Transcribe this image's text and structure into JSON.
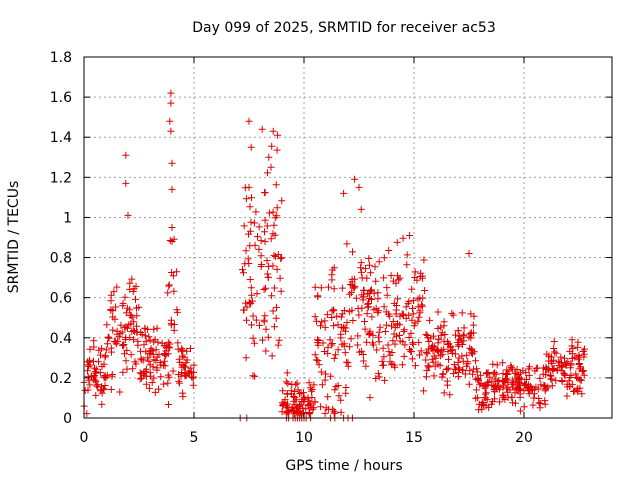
{
  "chart_data": {
    "type": "scatter",
    "title": "Day 099 of 2025, SRMTID for receiver ac53",
    "xlabel": "GPS time / hours",
    "ylabel": "SRMTID / TECUs",
    "xlim": [
      0,
      24
    ],
    "ylim": [
      0,
      1.8
    ],
    "xticks": [
      0,
      5,
      10,
      15,
      20
    ],
    "xtick_labels": [
      "0",
      "5",
      "10",
      "15",
      "20"
    ],
    "yticks": [
      0,
      0.2,
      0.4,
      0.6,
      0.8,
      1.0,
      1.2,
      1.4,
      1.6,
      1.8
    ],
    "ytick_labels": [
      "0",
      "0.2",
      "0.4",
      "0.6",
      "0.8",
      "1",
      "1.2",
      "1.4",
      "1.6",
      "1.8"
    ],
    "grid": true,
    "marker": "plus",
    "marker_color": "#e00000",
    "series": [
      {
        "name": "SRMTID",
        "segments": [
          {
            "x_start": 0.0,
            "x_end": 1.0,
            "baseline": 0.22,
            "spread": 0.1
          },
          {
            "x_start": 1.0,
            "x_end": 2.5,
            "baseline": 0.45,
            "spread": 0.15
          },
          {
            "x_start": 2.5,
            "x_end": 3.8,
            "baseline": 0.3,
            "spread": 0.1
          },
          {
            "x_start": 3.8,
            "x_end": 4.3,
            "baseline": 0.45,
            "spread": 0.35
          },
          {
            "x_start": 4.3,
            "x_end": 5.0,
            "baseline": 0.25,
            "spread": 0.08
          },
          {
            "x_start": 7.2,
            "x_end": 9.0,
            "baseline": 0.7,
            "spread": 0.3
          },
          {
            "x_start": 9.0,
            "x_end": 10.5,
            "baseline": 0.08,
            "spread": 0.08
          },
          {
            "x_start": 10.5,
            "x_end": 12.0,
            "baseline": 0.35,
            "spread": 0.25
          },
          {
            "x_start": 12.0,
            "x_end": 15.5,
            "baseline": 0.5,
            "spread": 0.2
          },
          {
            "x_start": 15.5,
            "x_end": 17.8,
            "baseline": 0.33,
            "spread": 0.1
          },
          {
            "x_start": 17.8,
            "x_end": 21.0,
            "baseline": 0.16,
            "spread": 0.07
          },
          {
            "x_start": 21.0,
            "x_end": 22.8,
            "baseline": 0.25,
            "spread": 0.08
          }
        ],
        "peaks": [
          {
            "x": 1.9,
            "y": 1.31
          },
          {
            "x": 1.9,
            "y": 1.17
          },
          {
            "x": 2.0,
            "y": 1.01
          },
          {
            "x": 3.95,
            "y": 1.62
          },
          {
            "x": 3.95,
            "y": 1.57
          },
          {
            "x": 3.9,
            "y": 1.48
          },
          {
            "x": 3.95,
            "y": 1.43
          },
          {
            "x": 4.0,
            "y": 1.27
          },
          {
            "x": 4.0,
            "y": 1.14
          },
          {
            "x": 4.0,
            "y": 0.95
          },
          {
            "x": 4.0,
            "y": 0.88
          },
          {
            "x": 7.5,
            "y": 1.48
          },
          {
            "x": 7.6,
            "y": 1.35
          },
          {
            "x": 7.5,
            "y": 1.15
          },
          {
            "x": 8.1,
            "y": 1.44
          },
          {
            "x": 8.6,
            "y": 1.43
          },
          {
            "x": 8.8,
            "y": 1.41
          },
          {
            "x": 8.4,
            "y": 1.3
          },
          {
            "x": 8.5,
            "y": 1.25
          },
          {
            "x": 11.8,
            "y": 1.12
          },
          {
            "x": 12.3,
            "y": 1.19
          },
          {
            "x": 12.5,
            "y": 1.15
          },
          {
            "x": 12.6,
            "y": 1.04
          },
          {
            "x": 14.8,
            "y": 0.91
          },
          {
            "x": 17.5,
            "y": 0.82
          }
        ],
        "zero_points": [
          7.1,
          7.4,
          9.2,
          9.3,
          9.5,
          9.6,
          9.7,
          9.8,
          9.9,
          10.0,
          10.1,
          10.3,
          11.2,
          11.4,
          11.8,
          12.0,
          12.2
        ]
      }
    ]
  }
}
